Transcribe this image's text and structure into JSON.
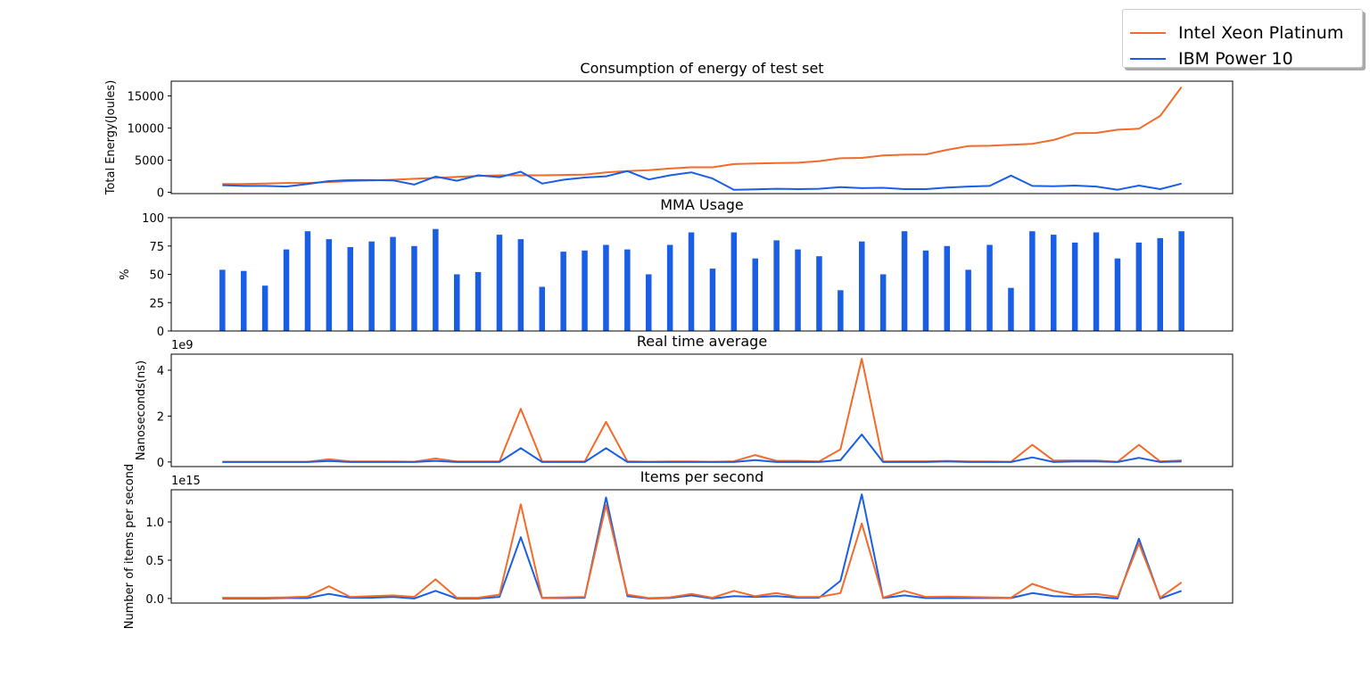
{
  "legend": {
    "intel_label": "Intel Xeon Platinum",
    "ibm_label": "IBM Power 10"
  },
  "colors": {
    "intel": "#f26b2a",
    "ibm": "#1a5ee6"
  },
  "chart_data": [
    {
      "type": "line",
      "title": "Consumption of energy of test set",
      "ylabel": "Total Energy(Joules)",
      "xlabel": "",
      "ylim": [
        -200,
        17300
      ],
      "yticks": [
        0,
        5000,
        10000,
        15000
      ],
      "ytick_labels": [
        "0",
        "5000",
        "10000",
        "15000"
      ],
      "x": [
        0,
        1,
        2,
        3,
        4,
        5,
        6,
        7,
        8,
        9,
        10,
        11,
        12,
        13,
        14,
        15,
        16,
        17,
        18,
        19,
        20,
        21,
        22,
        23,
        24,
        25,
        26,
        27,
        28,
        29,
        30,
        31,
        32,
        33,
        34,
        35,
        36,
        37,
        38,
        39,
        40,
        41,
        42,
        43,
        44,
        45
      ],
      "series": [
        {
          "name": "Intel Xeon Platinum",
          "color": "#f26b2a",
          "values": [
            1300,
            1300,
            1350,
            1450,
            1450,
            1600,
            1750,
            1850,
            1950,
            2100,
            2250,
            2400,
            2550,
            2650,
            2650,
            2650,
            2700,
            2750,
            3100,
            3300,
            3450,
            3700,
            3900,
            3900,
            4400,
            4500,
            4550,
            4600,
            4850,
            5300,
            5350,
            5750,
            5850,
            5900,
            6600,
            7200,
            7250,
            7400,
            7550,
            8150,
            9200,
            9250,
            9750,
            9900,
            11900,
            16400
          ]
        },
        {
          "name": "IBM Power 10",
          "color": "#1a5ee6",
          "values": [
            1100,
            1000,
            1000,
            900,
            1300,
            1750,
            1900,
            1900,
            1850,
            1200,
            2450,
            1800,
            2650,
            2350,
            3200,
            1350,
            1950,
            2300,
            2500,
            3300,
            2000,
            2650,
            3100,
            2150,
            400,
            450,
            550,
            500,
            550,
            800,
            650,
            700,
            500,
            500,
            750,
            900,
            1000,
            2600,
            1000,
            950,
            1050,
            900,
            400,
            1050,
            500,
            1350
          ]
        }
      ]
    },
    {
      "type": "bar",
      "title": "MMA Usage",
      "ylabel": "%",
      "xlabel": "",
      "ylim": [
        0,
        100
      ],
      "yticks": [
        0,
        25,
        50,
        75,
        100
      ],
      "ytick_labels": [
        "0",
        "25",
        "50",
        "75",
        "100"
      ],
      "x": [
        0,
        1,
        2,
        3,
        4,
        5,
        6,
        7,
        8,
        9,
        10,
        11,
        12,
        13,
        14,
        15,
        16,
        17,
        18,
        19,
        20,
        21,
        22,
        23,
        24,
        25,
        26,
        27,
        28,
        29,
        30,
        31,
        32,
        33,
        34,
        35,
        36,
        37,
        38,
        39,
        40,
        41,
        42,
        43,
        44,
        45
      ],
      "series": [
        {
          "name": "IBM Power 10",
          "color": "#1a5ee6",
          "values": [
            54,
            53,
            40,
            72,
            88,
            81,
            74,
            79,
            83,
            75,
            90,
            50,
            52,
            85,
            81,
            39,
            70,
            71,
            76,
            72,
            50,
            76,
            87,
            55,
            87,
            64,
            80,
            72,
            66,
            36,
            79,
            50,
            88,
            71,
            75,
            54,
            76,
            38,
            88,
            85,
            78,
            87,
            64,
            78,
            82,
            88
          ]
        }
      ]
    },
    {
      "type": "line",
      "title": "Real time average",
      "ylabel": "Nanoseconds(ns)",
      "xlabel": "",
      "offset_label": "1e9",
      "ylim": [
        -0.2,
        4.7
      ],
      "yticks": [
        0,
        2,
        4
      ],
      "ytick_labels": [
        "0",
        "2",
        "4"
      ],
      "x": [
        0,
        1,
        2,
        3,
        4,
        5,
        6,
        7,
        8,
        9,
        10,
        11,
        12,
        13,
        14,
        15,
        16,
        17,
        18,
        19,
        20,
        21,
        22,
        23,
        24,
        25,
        26,
        27,
        28,
        29,
        30,
        31,
        32,
        33,
        34,
        35,
        36,
        37,
        38,
        39,
        40,
        41,
        42,
        43,
        44,
        45
      ],
      "series": [
        {
          "name": "Intel Xeon Platinum",
          "color": "#f26b2a",
          "values": [
            0.01,
            0.01,
            0.01,
            0.01,
            0.01,
            0.12,
            0.02,
            0.02,
            0.02,
            0.01,
            0.15,
            0.02,
            0.02,
            0.02,
            2.32,
            0.02,
            0.02,
            0.02,
            1.75,
            0.03,
            0.01,
            0.02,
            0.02,
            0.01,
            0.03,
            0.3,
            0.05,
            0.05,
            0.02,
            0.55,
            4.5,
            0.02,
            0.03,
            0.03,
            0.05,
            0.02,
            0.02,
            0.01,
            0.75,
            0.06,
            0.07,
            0.06,
            0.01,
            0.75,
            0.02,
            0.07
          ]
        },
        {
          "name": "IBM Power 10",
          "color": "#1a5ee6",
          "values": [
            0.0,
            0.0,
            0.0,
            0.0,
            0.0,
            0.04,
            0.0,
            0.0,
            0.0,
            0.0,
            0.05,
            0.0,
            0.0,
            0.0,
            0.6,
            0.0,
            0.0,
            0.0,
            0.6,
            0.0,
            0.0,
            0.0,
            0.0,
            0.0,
            0.0,
            0.08,
            0.0,
            0.0,
            0.0,
            0.08,
            1.2,
            0.0,
            0.0,
            0.0,
            0.02,
            0.0,
            0.0,
            0.0,
            0.2,
            0.0,
            0.02,
            0.02,
            0.0,
            0.18,
            0.0,
            0.02
          ]
        }
      ]
    },
    {
      "type": "line",
      "title": "Items per second",
      "ylabel": "Number of items per second",
      "xlabel": "",
      "offset_label": "1e15",
      "ylim": [
        -0.06,
        1.42
      ],
      "yticks": [
        0.0,
        0.5,
        1.0
      ],
      "ytick_labels": [
        "0.0",
        "0.5",
        "1.0"
      ],
      "x": [
        0,
        1,
        2,
        3,
        4,
        5,
        6,
        7,
        8,
        9,
        10,
        11,
        12,
        13,
        14,
        15,
        16,
        17,
        18,
        19,
        20,
        21,
        22,
        23,
        24,
        25,
        26,
        27,
        28,
        29,
        30,
        31,
        32,
        33,
        34,
        35,
        36,
        37,
        38,
        39,
        40,
        41,
        42,
        43,
        44,
        45
      ],
      "series": [
        {
          "name": "IBM Power 10",
          "color": "#1a5ee6",
          "values": [
            0.0,
            0.0,
            0.0,
            0.005,
            0.005,
            0.06,
            0.01,
            0.01,
            0.02,
            0.0,
            0.1,
            0.0,
            0.0,
            0.02,
            0.8,
            0.005,
            0.005,
            0.01,
            1.32,
            0.03,
            0.0,
            0.005,
            0.04,
            0.0,
            0.03,
            0.02,
            0.03,
            0.01,
            0.01,
            0.23,
            1.36,
            0.005,
            0.04,
            0.005,
            0.005,
            0.005,
            0.005,
            0.005,
            0.07,
            0.03,
            0.02,
            0.02,
            0.0,
            0.78,
            0.0,
            0.1
          ]
        },
        {
          "name": "Intel Xeon Platinum",
          "color": "#f26b2a",
          "values": [
            0.01,
            0.01,
            0.01,
            0.015,
            0.025,
            0.16,
            0.02,
            0.03,
            0.04,
            0.02,
            0.25,
            0.01,
            0.01,
            0.05,
            1.23,
            0.01,
            0.015,
            0.02,
            1.22,
            0.05,
            0.005,
            0.015,
            0.06,
            0.01,
            0.1,
            0.03,
            0.07,
            0.02,
            0.02,
            0.07,
            0.98,
            0.01,
            0.1,
            0.02,
            0.025,
            0.02,
            0.015,
            0.01,
            0.19,
            0.1,
            0.045,
            0.06,
            0.02,
            0.72,
            0.01,
            0.21
          ]
        }
      ]
    }
  ]
}
